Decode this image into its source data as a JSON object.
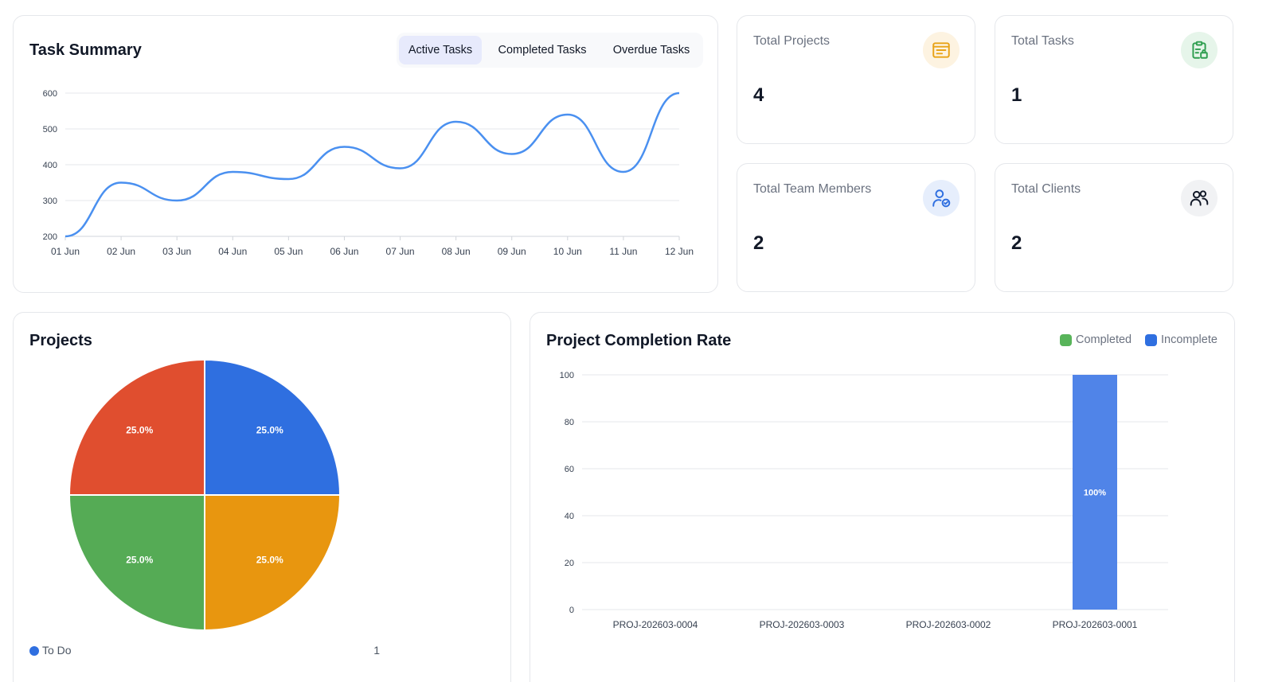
{
  "task_summary": {
    "title": "Task Summary",
    "tabs": [
      {
        "label": "Active Tasks",
        "active": true
      },
      {
        "label": "Completed Tasks",
        "active": false
      },
      {
        "label": "Overdue Tasks",
        "active": false
      }
    ]
  },
  "stats": [
    {
      "label": "Total Projects",
      "value": "4",
      "icon": "document-list-icon",
      "icon_color": "#e8a317",
      "icon_bg": "#fdf3e1"
    },
    {
      "label": "Total Tasks",
      "value": "1",
      "icon": "clipboard-icon",
      "icon_color": "#2e9e4f",
      "icon_bg": "#e6f5ea"
    },
    {
      "label": "Total Team Members",
      "value": "2",
      "icon": "user-check-icon",
      "icon_color": "#2f6fe0",
      "icon_bg": "#e6eefc"
    },
    {
      "label": "Total Clients",
      "value": "2",
      "icon": "users-icon",
      "icon_color": "#111827",
      "icon_bg": "#f1f2f4"
    }
  ],
  "projects": {
    "title": "Projects",
    "legend": [
      {
        "label": "To Do",
        "count": "1",
        "color": "#2f6fe0"
      }
    ]
  },
  "completion": {
    "title": "Project Completion Rate",
    "legend": [
      {
        "label": "Completed",
        "color": "#58b45a"
      },
      {
        "label": "Incomplete",
        "color": "#2f6fe0"
      }
    ]
  },
  "chart_data": [
    {
      "type": "line",
      "x": [
        "01 Jun",
        "02 Jun",
        "03 Jun",
        "04 Jun",
        "05 Jun",
        "06 Jun",
        "07 Jun",
        "08 Jun",
        "09 Jun",
        "10 Jun",
        "11 Jun",
        "12 Jun"
      ],
      "series": [
        {
          "values": [
            200,
            350,
            300,
            380,
            360,
            450,
            390,
            520,
            430,
            540,
            380,
            600
          ]
        }
      ],
      "ylim": [
        200,
        600
      ],
      "yticks": [
        200,
        300,
        400,
        500,
        600
      ],
      "color": "#4a90f0",
      "grid": true
    },
    {
      "type": "pie",
      "slices": [
        {
          "value": 25.0,
          "label": "25.0%",
          "color": "#2f6fe0"
        },
        {
          "value": 25.0,
          "label": "25.0%",
          "color": "#e8960f"
        },
        {
          "value": 25.0,
          "label": "25.0%",
          "color": "#55ab55"
        },
        {
          "value": 25.0,
          "label": "25.0%",
          "color": "#e04e2f"
        }
      ]
    },
    {
      "type": "bar",
      "categories": [
        "PROJ-202603-0004",
        "PROJ-202603-0003",
        "PROJ-202603-0002",
        "PROJ-202603-0001"
      ],
      "series": [
        {
          "name": "Completed",
          "values": [
            0,
            0,
            0,
            0
          ],
          "color": "#58b45a"
        },
        {
          "name": "Incomplete",
          "values": [
            0,
            0,
            0,
            100
          ],
          "color": "#5084e8"
        }
      ],
      "data_labels": [
        "",
        "",
        "",
        "100%"
      ],
      "ylim": [
        0,
        100
      ],
      "yticks": [
        0,
        20,
        40,
        60,
        80,
        100
      ],
      "grid": true
    }
  ]
}
